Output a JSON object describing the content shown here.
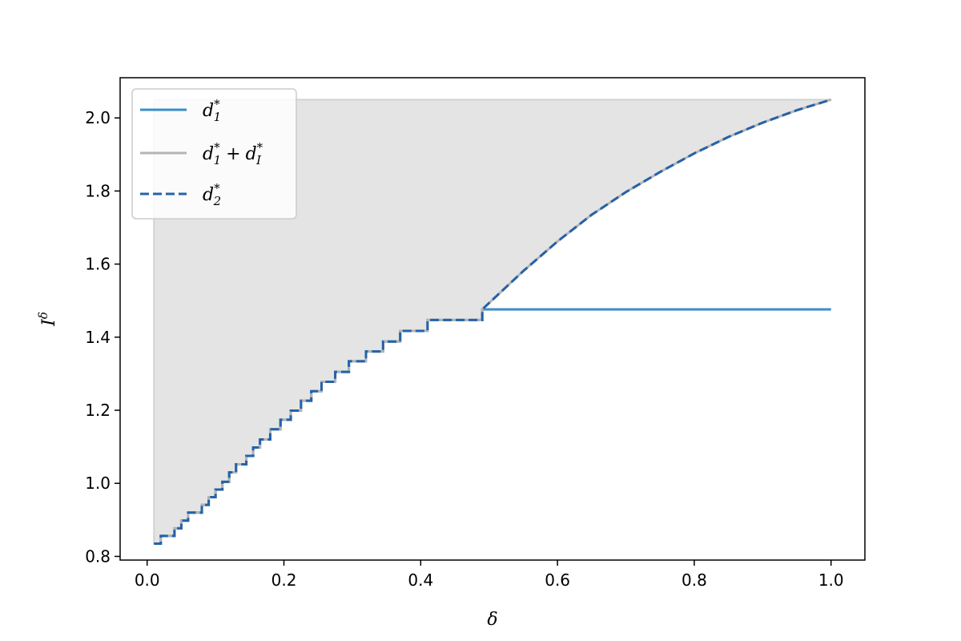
{
  "chart_data": {
    "type": "line",
    "title": "",
    "xlabel": "δ",
    "ylabel": "I",
    "ylabel_sup": "δ",
    "xlim": [
      -0.0395,
      1.0495
    ],
    "ylim": [
      0.79,
      2.11
    ],
    "xticks": [
      0.0,
      0.2,
      0.4,
      0.6,
      0.8,
      1.0
    ],
    "xtick_labels": [
      "0.0",
      "0.2",
      "0.4",
      "0.6",
      "0.8",
      "1.0"
    ],
    "yticks": [
      0.8,
      1.0,
      1.2,
      1.4,
      1.6,
      1.8,
      2.0
    ],
    "ytick_labels": [
      "0.8",
      "1.0",
      "1.2",
      "1.4",
      "1.6",
      "1.8",
      "2.0"
    ],
    "legend_position": "top-left",
    "grid": false,
    "fill_region": {
      "description_of_bounds": "between d1*+dI* and the top level 2.05, for δ from 0.01 to 1.0",
      "top": 2.05,
      "x_from": 0.01,
      "x_to": 1.0,
      "color": "#e4e4e4"
    },
    "series": [
      {
        "name": "d",
        "sub": "1",
        "sup": "*",
        "extra": "",
        "color": "#3a8ec8",
        "style": "solid",
        "points": [
          [
            0.01,
            0.835
          ],
          [
            0.02,
            0.835
          ],
          [
            0.02,
            0.856
          ],
          [
            0.04,
            0.856
          ],
          [
            0.04,
            0.877
          ],
          [
            0.05,
            0.877
          ],
          [
            0.05,
            0.898
          ],
          [
            0.06,
            0.898
          ],
          [
            0.06,
            0.92
          ],
          [
            0.08,
            0.92
          ],
          [
            0.08,
            0.941
          ],
          [
            0.09,
            0.941
          ],
          [
            0.09,
            0.962
          ],
          [
            0.1,
            0.962
          ],
          [
            0.1,
            0.983
          ],
          [
            0.11,
            0.983
          ],
          [
            0.11,
            1.004
          ],
          [
            0.12,
            1.004
          ],
          [
            0.12,
            1.03
          ],
          [
            0.13,
            1.03
          ],
          [
            0.13,
            1.052
          ],
          [
            0.145,
            1.052
          ],
          [
            0.145,
            1.075
          ],
          [
            0.155,
            1.075
          ],
          [
            0.155,
            1.098
          ],
          [
            0.165,
            1.098
          ],
          [
            0.165,
            1.12
          ],
          [
            0.18,
            1.12
          ],
          [
            0.18,
            1.148
          ],
          [
            0.195,
            1.148
          ],
          [
            0.195,
            1.174
          ],
          [
            0.21,
            1.174
          ],
          [
            0.21,
            1.199
          ],
          [
            0.225,
            1.199
          ],
          [
            0.225,
            1.226
          ],
          [
            0.24,
            1.226
          ],
          [
            0.24,
            1.252
          ],
          [
            0.255,
            1.252
          ],
          [
            0.255,
            1.278
          ],
          [
            0.275,
            1.278
          ],
          [
            0.275,
            1.305
          ],
          [
            0.295,
            1.305
          ],
          [
            0.295,
            1.334
          ],
          [
            0.32,
            1.334
          ],
          [
            0.32,
            1.361
          ],
          [
            0.345,
            1.361
          ],
          [
            0.345,
            1.388
          ],
          [
            0.37,
            1.388
          ],
          [
            0.37,
            1.417
          ],
          [
            0.41,
            1.417
          ],
          [
            0.41,
            1.447
          ],
          [
            0.49,
            1.447
          ],
          [
            0.49,
            1.476
          ],
          [
            1.0,
            1.476
          ]
        ]
      },
      {
        "name": "d",
        "sub": "1",
        "sup": "*",
        "extra": " + d_I*",
        "color": "#b4b4b4",
        "style": "solid",
        "points": [
          [
            0.01,
            0.835
          ],
          [
            0.02,
            0.835
          ],
          [
            0.02,
            0.856
          ],
          [
            0.04,
            0.856
          ],
          [
            0.04,
            0.877
          ],
          [
            0.05,
            0.877
          ],
          [
            0.05,
            0.898
          ],
          [
            0.06,
            0.898
          ],
          [
            0.06,
            0.92
          ],
          [
            0.08,
            0.92
          ],
          [
            0.08,
            0.941
          ],
          [
            0.09,
            0.941
          ],
          [
            0.09,
            0.962
          ],
          [
            0.1,
            0.962
          ],
          [
            0.1,
            0.983
          ],
          [
            0.11,
            0.983
          ],
          [
            0.11,
            1.004
          ],
          [
            0.12,
            1.004
          ],
          [
            0.12,
            1.03
          ],
          [
            0.13,
            1.03
          ],
          [
            0.13,
            1.052
          ],
          [
            0.145,
            1.052
          ],
          [
            0.145,
            1.075
          ],
          [
            0.155,
            1.075
          ],
          [
            0.155,
            1.098
          ],
          [
            0.165,
            1.098
          ],
          [
            0.165,
            1.12
          ],
          [
            0.18,
            1.12
          ],
          [
            0.18,
            1.148
          ],
          [
            0.195,
            1.148
          ],
          [
            0.195,
            1.174
          ],
          [
            0.21,
            1.174
          ],
          [
            0.21,
            1.199
          ],
          [
            0.225,
            1.199
          ],
          [
            0.225,
            1.226
          ],
          [
            0.24,
            1.226
          ],
          [
            0.24,
            1.252
          ],
          [
            0.255,
            1.252
          ],
          [
            0.255,
            1.278
          ],
          [
            0.275,
            1.278
          ],
          [
            0.275,
            1.305
          ],
          [
            0.295,
            1.305
          ],
          [
            0.295,
            1.334
          ],
          [
            0.32,
            1.334
          ],
          [
            0.32,
            1.361
          ],
          [
            0.345,
            1.361
          ],
          [
            0.345,
            1.388
          ],
          [
            0.37,
            1.388
          ],
          [
            0.37,
            1.417
          ],
          [
            0.41,
            1.417
          ],
          [
            0.41,
            1.447
          ],
          [
            0.49,
            1.447
          ],
          [
            0.49,
            1.476
          ],
          [
            0.55,
            1.581
          ],
          [
            0.6,
            1.662
          ],
          [
            0.65,
            1.735
          ],
          [
            0.7,
            1.797
          ],
          [
            0.75,
            1.852
          ],
          [
            0.8,
            1.903
          ],
          [
            0.85,
            1.948
          ],
          [
            0.9,
            1.987
          ],
          [
            0.95,
            2.021
          ],
          [
            1.0,
            2.05
          ]
        ]
      },
      {
        "name": "d",
        "sub": "2",
        "sup": "*",
        "extra": "",
        "color": "#2562a8",
        "style": "dashed",
        "points": [
          [
            0.01,
            0.835
          ],
          [
            0.02,
            0.835
          ],
          [
            0.02,
            0.856
          ],
          [
            0.04,
            0.856
          ],
          [
            0.04,
            0.877
          ],
          [
            0.05,
            0.877
          ],
          [
            0.05,
            0.898
          ],
          [
            0.06,
            0.898
          ],
          [
            0.06,
            0.92
          ],
          [
            0.08,
            0.92
          ],
          [
            0.08,
            0.941
          ],
          [
            0.09,
            0.941
          ],
          [
            0.09,
            0.962
          ],
          [
            0.1,
            0.962
          ],
          [
            0.1,
            0.983
          ],
          [
            0.11,
            0.983
          ],
          [
            0.11,
            1.004
          ],
          [
            0.12,
            1.004
          ],
          [
            0.12,
            1.03
          ],
          [
            0.13,
            1.03
          ],
          [
            0.13,
            1.052
          ],
          [
            0.145,
            1.052
          ],
          [
            0.145,
            1.075
          ],
          [
            0.155,
            1.075
          ],
          [
            0.155,
            1.098
          ],
          [
            0.165,
            1.098
          ],
          [
            0.165,
            1.12
          ],
          [
            0.18,
            1.12
          ],
          [
            0.18,
            1.148
          ],
          [
            0.195,
            1.148
          ],
          [
            0.195,
            1.174
          ],
          [
            0.21,
            1.174
          ],
          [
            0.21,
            1.199
          ],
          [
            0.225,
            1.199
          ],
          [
            0.225,
            1.226
          ],
          [
            0.24,
            1.226
          ],
          [
            0.24,
            1.252
          ],
          [
            0.255,
            1.252
          ],
          [
            0.255,
            1.278
          ],
          [
            0.275,
            1.278
          ],
          [
            0.275,
            1.305
          ],
          [
            0.295,
            1.305
          ],
          [
            0.295,
            1.334
          ],
          [
            0.32,
            1.334
          ],
          [
            0.32,
            1.361
          ],
          [
            0.345,
            1.361
          ],
          [
            0.345,
            1.388
          ],
          [
            0.37,
            1.388
          ],
          [
            0.37,
            1.417
          ],
          [
            0.41,
            1.417
          ],
          [
            0.41,
            1.447
          ],
          [
            0.49,
            1.447
          ],
          [
            0.49,
            1.476
          ],
          [
            0.55,
            1.581
          ],
          [
            0.6,
            1.662
          ],
          [
            0.65,
            1.735
          ],
          [
            0.7,
            1.797
          ],
          [
            0.75,
            1.852
          ],
          [
            0.8,
            1.903
          ],
          [
            0.85,
            1.948
          ],
          [
            0.9,
            1.987
          ],
          [
            0.95,
            2.021
          ],
          [
            1.0,
            2.05
          ]
        ]
      }
    ]
  }
}
